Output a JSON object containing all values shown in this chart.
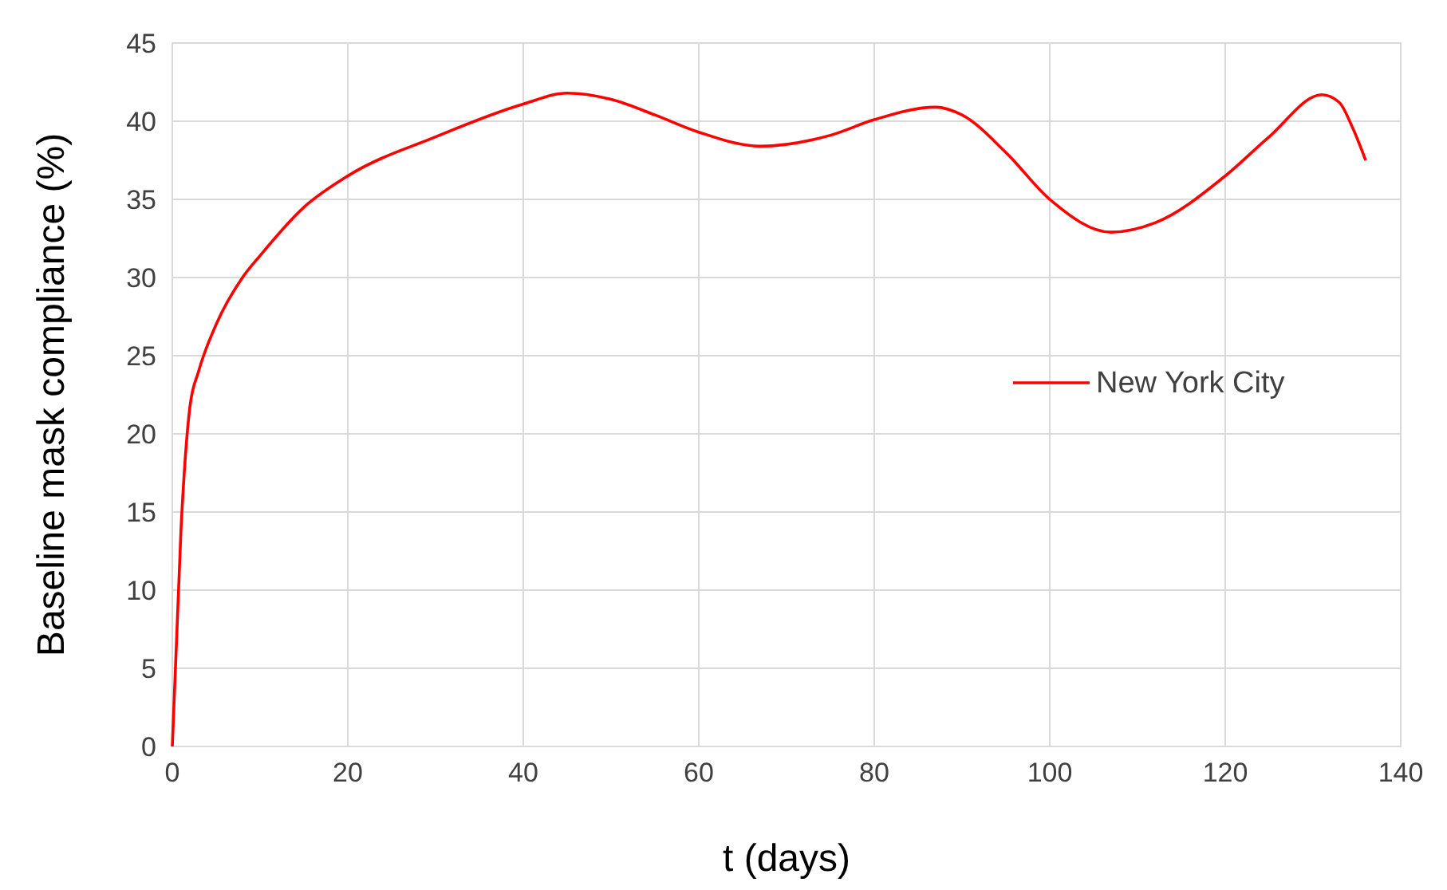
{
  "chart_data": {
    "type": "line",
    "xlabel": "t (days)",
    "ylabel": "Baseline mask compliance (%)",
    "xlim": [
      0,
      140
    ],
    "xticks": [
      0,
      20,
      40,
      60,
      80,
      100,
      120,
      140
    ],
    "ylim": [
      0,
      45
    ],
    "yticks": [
      0,
      5,
      10,
      15,
      20,
      25,
      30,
      35,
      40,
      45
    ],
    "grid": true,
    "legend": "right",
    "marker": "none",
    "line_style": "solid",
    "series": [
      {
        "name": "New York City",
        "color": "#ff0000",
        "x": [
          0,
          1,
          2,
          3,
          5,
          8,
          10,
          15,
          20,
          30,
          40,
          45,
          50,
          55,
          60,
          67,
          75,
          80,
          87,
          90,
          95,
          100,
          107,
          112,
          120,
          125,
          131,
          133,
          134.5,
          136
        ],
        "values": [
          0,
          14,
          21.7,
          24,
          27,
          30,
          31.4,
          34.5,
          36.5,
          39,
          41.1,
          41.8,
          41.4,
          40.4,
          39.3,
          38.4,
          39.1,
          40.1,
          40.9,
          40.4,
          38,
          35,
          32.9,
          33.5,
          36.5,
          39,
          41.7,
          41.2,
          39.6,
          37.5
        ]
      }
    ]
  }
}
